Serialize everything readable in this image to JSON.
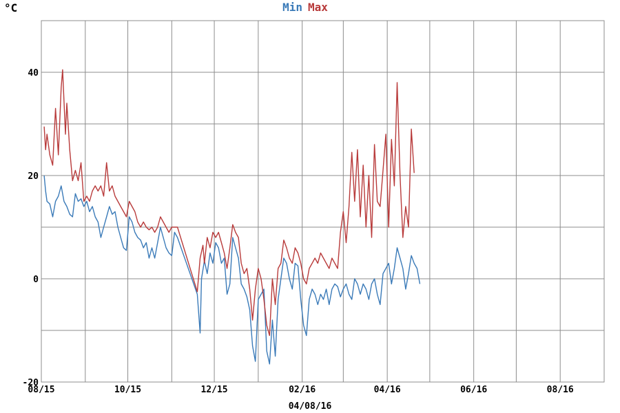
{
  "chart_data": {
    "type": "line",
    "y_unit_label": "°C",
    "ylim": [
      -20,
      50
    ],
    "yticks": [
      -20,
      0,
      20,
      40
    ],
    "xlim": [
      "2015-08-15",
      "2016-09-15"
    ],
    "x_ticks": [
      {
        "date": "2015-08-15",
        "label": "08/15"
      },
      {
        "date": "2015-10-15",
        "label": "10/15"
      },
      {
        "date": "2015-12-15",
        "label": "12/15"
      },
      {
        "date": "2016-02-15",
        "label": "02/16"
      },
      {
        "date": "2016-04-15",
        "label": "04/16"
      },
      {
        "date": "2016-06-15",
        "label": "06/16"
      },
      {
        "date": "2016-08-15",
        "label": "08/16"
      }
    ],
    "footer_date": "04/08/16",
    "grid": true,
    "legend_position": "top-center",
    "series": [
      {
        "name": "Min",
        "color": "#3a7ab8",
        "points": [
          [
            "2015-08-17",
            20
          ],
          [
            "2015-08-18",
            17
          ],
          [
            "2015-08-19",
            15
          ],
          [
            "2015-08-21",
            14.5
          ],
          [
            "2015-08-23",
            12
          ],
          [
            "2015-08-25",
            15
          ],
          [
            "2015-08-27",
            16
          ],
          [
            "2015-08-29",
            18
          ],
          [
            "2015-08-31",
            15
          ],
          [
            "2015-09-02",
            14
          ],
          [
            "2015-09-04",
            12.5
          ],
          [
            "2015-09-06",
            12
          ],
          [
            "2015-09-08",
            16.5
          ],
          [
            "2015-09-10",
            15
          ],
          [
            "2015-09-12",
            15.5
          ],
          [
            "2015-09-14",
            14
          ],
          [
            "2015-09-16",
            15
          ],
          [
            "2015-09-18",
            13
          ],
          [
            "2015-09-20",
            14
          ],
          [
            "2015-09-22",
            12
          ],
          [
            "2015-09-24",
            11
          ],
          [
            "2015-09-26",
            8
          ],
          [
            "2015-09-28",
            10
          ],
          [
            "2015-09-30",
            12
          ],
          [
            "2015-10-02",
            14
          ],
          [
            "2015-10-04",
            12.5
          ],
          [
            "2015-10-06",
            13
          ],
          [
            "2015-10-08",
            10
          ],
          [
            "2015-10-10",
            8
          ],
          [
            "2015-10-12",
            6
          ],
          [
            "2015-10-14",
            5.5
          ],
          [
            "2015-10-16",
            12
          ],
          [
            "2015-10-18",
            11
          ],
          [
            "2015-10-20",
            9
          ],
          [
            "2015-10-22",
            8
          ],
          [
            "2015-10-24",
            7.5
          ],
          [
            "2015-10-26",
            6
          ],
          [
            "2015-10-28",
            7
          ],
          [
            "2015-10-30",
            4
          ],
          [
            "2015-11-01",
            6
          ],
          [
            "2015-11-03",
            4
          ],
          [
            "2015-11-05",
            7
          ],
          [
            "2015-11-07",
            10
          ],
          [
            "2015-11-09",
            8
          ],
          [
            "2015-11-11",
            6
          ],
          [
            "2015-11-13",
            5
          ],
          [
            "2015-11-15",
            4.5
          ],
          [
            "2015-11-17",
            9
          ],
          [
            "2015-11-19",
            8
          ],
          [
            "2015-12-03",
            -3
          ],
          [
            "2015-12-05",
            -10.5
          ],
          [
            "2015-12-06",
            0
          ],
          [
            "2015-12-08",
            3.5
          ],
          [
            "2015-12-10",
            1
          ],
          [
            "2015-12-12",
            5
          ],
          [
            "2015-12-14",
            3
          ],
          [
            "2015-12-16",
            7
          ],
          [
            "2015-12-18",
            6
          ],
          [
            "2015-12-20",
            3
          ],
          [
            "2015-12-22",
            4
          ],
          [
            "2015-12-24",
            -3
          ],
          [
            "2015-12-26",
            -1
          ],
          [
            "2015-12-28",
            8
          ],
          [
            "2015-12-30",
            6
          ],
          [
            "2016-01-01",
            4
          ],
          [
            "2016-01-03",
            -1
          ],
          [
            "2016-01-05",
            -2
          ],
          [
            "2016-01-07",
            -3.5
          ],
          [
            "2016-01-09",
            -6
          ],
          [
            "2016-01-11",
            -13
          ],
          [
            "2016-01-13",
            -16
          ],
          [
            "2016-01-15",
            -4
          ],
          [
            "2016-01-17",
            -3
          ],
          [
            "2016-01-19",
            -2
          ],
          [
            "2016-01-21",
            -14
          ],
          [
            "2016-01-23",
            -16.5
          ],
          [
            "2016-01-25",
            -8
          ],
          [
            "2016-01-27",
            -15
          ],
          [
            "2016-01-29",
            -4
          ],
          [
            "2016-01-31",
            0
          ],
          [
            "2016-02-02",
            4
          ],
          [
            "2016-02-04",
            3
          ],
          [
            "2016-02-06",
            0
          ],
          [
            "2016-02-08",
            -2
          ],
          [
            "2016-02-10",
            3
          ],
          [
            "2016-02-12",
            2.5
          ],
          [
            "2016-02-14",
            -4
          ],
          [
            "2016-02-16",
            -9
          ],
          [
            "2016-02-18",
            -11
          ],
          [
            "2016-02-20",
            -4
          ],
          [
            "2016-02-22",
            -2
          ],
          [
            "2016-02-24",
            -3
          ],
          [
            "2016-02-26",
            -5
          ],
          [
            "2016-02-28",
            -3
          ],
          [
            "2016-03-01",
            -4
          ],
          [
            "2016-03-03",
            -2
          ],
          [
            "2016-03-05",
            -5
          ],
          [
            "2016-03-07",
            -2
          ],
          [
            "2016-03-09",
            -1
          ],
          [
            "2016-03-11",
            -1.5
          ],
          [
            "2016-03-13",
            -3.5
          ],
          [
            "2016-03-15",
            -2
          ],
          [
            "2016-03-17",
            -1
          ],
          [
            "2016-03-19",
            -3
          ],
          [
            "2016-03-21",
            -4
          ],
          [
            "2016-03-23",
            0
          ],
          [
            "2016-03-25",
            -1
          ],
          [
            "2016-03-27",
            -3
          ],
          [
            "2016-03-29",
            -1
          ],
          [
            "2016-03-31",
            -2
          ],
          [
            "2016-04-02",
            -4
          ],
          [
            "2016-04-04",
            -1
          ],
          [
            "2016-04-06",
            0
          ],
          [
            "2016-04-08",
            -3
          ],
          [
            "2016-04-10",
            -5
          ],
          [
            "2016-04-12",
            1
          ],
          [
            "2016-04-14",
            2
          ],
          [
            "2016-04-16",
            3
          ],
          [
            "2016-04-18",
            -1
          ],
          [
            "2016-04-20",
            2
          ],
          [
            "2016-04-22",
            6
          ],
          [
            "2016-04-24",
            4
          ],
          [
            "2016-04-26",
            2
          ],
          [
            "2016-04-28",
            -2
          ],
          [
            "2016-04-30",
            1
          ],
          [
            "2016-05-02",
            4.5
          ],
          [
            "2016-05-04",
            3
          ],
          [
            "2016-05-06",
            2
          ],
          [
            "2016-05-08",
            -1
          ]
        ]
      },
      {
        "name": "Max",
        "color": "#b83a3a",
        "points": [
          [
            "2015-08-17",
            29.5
          ],
          [
            "2015-08-18",
            25
          ],
          [
            "2015-08-19",
            28
          ],
          [
            "2015-08-21",
            24
          ],
          [
            "2015-08-23",
            22
          ],
          [
            "2015-08-25",
            33
          ],
          [
            "2015-08-27",
            24
          ],
          [
            "2015-08-29",
            37
          ],
          [
            "2015-08-30",
            40.5
          ],
          [
            "2015-09-01",
            28
          ],
          [
            "2015-09-02",
            34
          ],
          [
            "2015-09-04",
            25
          ],
          [
            "2015-09-06",
            19
          ],
          [
            "2015-09-08",
            21
          ],
          [
            "2015-09-10",
            19
          ],
          [
            "2015-09-12",
            22.5
          ],
          [
            "2015-09-14",
            15
          ],
          [
            "2015-09-16",
            16
          ],
          [
            "2015-09-18",
            15
          ],
          [
            "2015-09-20",
            17
          ],
          [
            "2015-09-22",
            18
          ],
          [
            "2015-09-24",
            17
          ],
          [
            "2015-09-26",
            18
          ],
          [
            "2015-09-28",
            16
          ],
          [
            "2015-09-30",
            22.5
          ],
          [
            "2015-10-02",
            17
          ],
          [
            "2015-10-04",
            18
          ],
          [
            "2015-10-06",
            16
          ],
          [
            "2015-10-08",
            15
          ],
          [
            "2015-10-10",
            14
          ],
          [
            "2015-10-12",
            13
          ],
          [
            "2015-10-14",
            12
          ],
          [
            "2015-10-16",
            15
          ],
          [
            "2015-10-18",
            14
          ],
          [
            "2015-10-20",
            13
          ],
          [
            "2015-10-22",
            11
          ],
          [
            "2015-10-24",
            10
          ],
          [
            "2015-10-26",
            11
          ],
          [
            "2015-10-28",
            10
          ],
          [
            "2015-10-30",
            9.5
          ],
          [
            "2015-11-01",
            10
          ],
          [
            "2015-11-03",
            9
          ],
          [
            "2015-11-05",
            10
          ],
          [
            "2015-11-07",
            12
          ],
          [
            "2015-11-09",
            11
          ],
          [
            "2015-11-11",
            10
          ],
          [
            "2015-11-13",
            9
          ],
          [
            "2015-11-15",
            10
          ],
          [
            "2015-11-19",
            10
          ],
          [
            "2015-12-03",
            -2.5
          ],
          [
            "2015-12-05",
            4
          ],
          [
            "2015-12-07",
            6.5
          ],
          [
            "2015-12-08",
            3
          ],
          [
            "2015-12-10",
            8
          ],
          [
            "2015-12-12",
            6
          ],
          [
            "2015-12-14",
            9
          ],
          [
            "2015-12-16",
            8
          ],
          [
            "2015-12-18",
            9
          ],
          [
            "2015-12-20",
            7
          ],
          [
            "2015-12-22",
            5
          ],
          [
            "2015-12-24",
            2
          ],
          [
            "2015-12-26",
            6
          ],
          [
            "2015-12-28",
            10.5
          ],
          [
            "2015-12-30",
            9
          ],
          [
            "2016-01-01",
            8
          ],
          [
            "2016-01-03",
            3
          ],
          [
            "2016-01-05",
            1
          ],
          [
            "2016-01-07",
            2
          ],
          [
            "2016-01-09",
            -2
          ],
          [
            "2016-01-11",
            -8
          ],
          [
            "2016-01-13",
            -2
          ],
          [
            "2016-01-15",
            2
          ],
          [
            "2016-01-17",
            0
          ],
          [
            "2016-01-19",
            -4
          ],
          [
            "2016-01-21",
            -9
          ],
          [
            "2016-01-23",
            -11
          ],
          [
            "2016-01-25",
            0
          ],
          [
            "2016-01-27",
            -5
          ],
          [
            "2016-01-29",
            2
          ],
          [
            "2016-01-31",
            3
          ],
          [
            "2016-02-02",
            7.5
          ],
          [
            "2016-02-04",
            6
          ],
          [
            "2016-02-06",
            4
          ],
          [
            "2016-02-08",
            3
          ],
          [
            "2016-02-10",
            6
          ],
          [
            "2016-02-12",
            5
          ],
          [
            "2016-02-14",
            3
          ],
          [
            "2016-02-16",
            0
          ],
          [
            "2016-02-18",
            -1
          ],
          [
            "2016-02-20",
            2
          ],
          [
            "2016-02-22",
            3
          ],
          [
            "2016-02-24",
            4
          ],
          [
            "2016-02-26",
            3
          ],
          [
            "2016-02-28",
            5
          ],
          [
            "2016-03-01",
            4
          ],
          [
            "2016-03-03",
            3
          ],
          [
            "2016-03-05",
            2
          ],
          [
            "2016-03-07",
            4
          ],
          [
            "2016-03-09",
            3
          ],
          [
            "2016-03-11",
            2
          ],
          [
            "2016-03-13",
            9
          ],
          [
            "2016-03-15",
            13
          ],
          [
            "2016-03-17",
            7
          ],
          [
            "2016-03-19",
            14
          ],
          [
            "2016-03-21",
            24.5
          ],
          [
            "2016-03-23",
            15
          ],
          [
            "2016-03-25",
            25
          ],
          [
            "2016-03-27",
            12
          ],
          [
            "2016-03-29",
            22
          ],
          [
            "2016-03-31",
            10
          ],
          [
            "2016-04-02",
            20
          ],
          [
            "2016-04-04",
            8
          ],
          [
            "2016-04-06",
            26
          ],
          [
            "2016-04-08",
            15
          ],
          [
            "2016-04-10",
            14
          ],
          [
            "2016-04-12",
            21
          ],
          [
            "2016-04-14",
            28
          ],
          [
            "2016-04-16",
            10
          ],
          [
            "2016-04-18",
            27
          ],
          [
            "2016-04-20",
            18
          ],
          [
            "2016-04-22",
            38
          ],
          [
            "2016-04-24",
            20
          ],
          [
            "2016-04-26",
            8
          ],
          [
            "2016-04-28",
            14
          ],
          [
            "2016-04-30",
            10
          ],
          [
            "2016-05-02",
            29
          ],
          [
            "2016-05-04",
            20.5
          ]
        ]
      }
    ]
  }
}
